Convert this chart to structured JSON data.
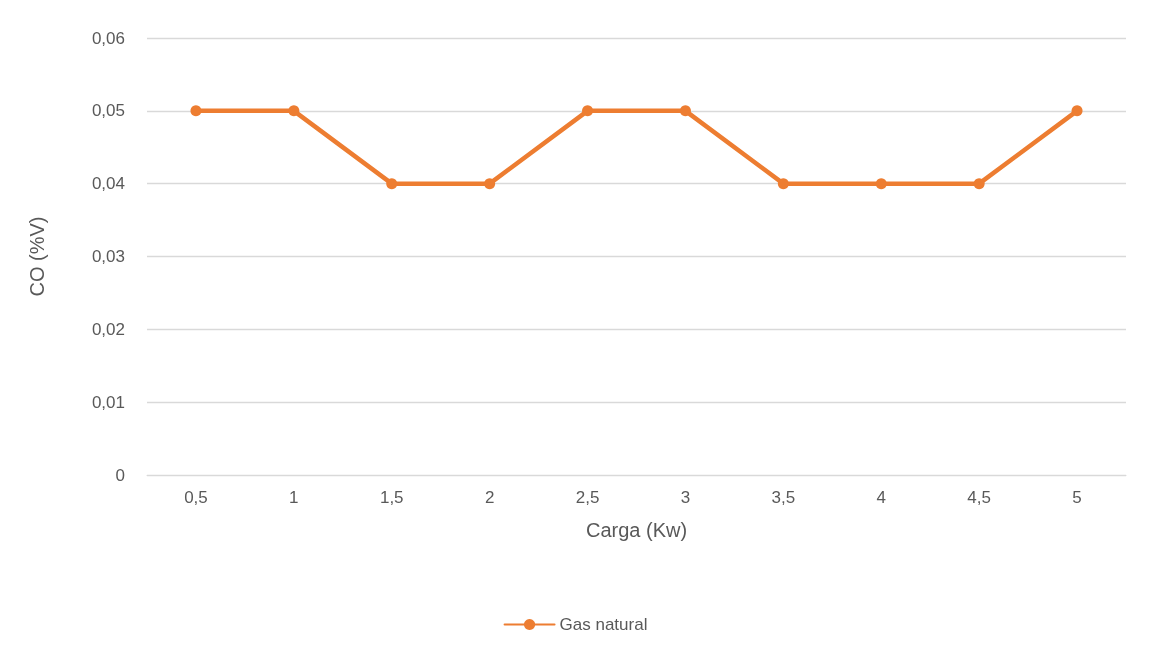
{
  "chart_data": {
    "type": "line",
    "xlabel": "Carga (Kw)",
    "ylabel": "CO (%V)",
    "categories": [
      "0,5",
      "1",
      "1,5",
      "2",
      "2,5",
      "3",
      "3,5",
      "4",
      "4,5",
      "5"
    ],
    "series": [
      {
        "name": "Gas natural",
        "color": "#ed7d31",
        "values": [
          0.05,
          0.05,
          0.04,
          0.04,
          0.05,
          0.05,
          0.04,
          0.04,
          0.04,
          0.05
        ]
      }
    ],
    "ylim": [
      0,
      0.06
    ],
    "yticks": [
      0,
      {
        "value": 0.01,
        "label": "0,01"
      },
      {
        "value": 0.02,
        "label": "0,02"
      },
      {
        "value": 0.03,
        "label": "0,03"
      },
      {
        "value": 0.04,
        "label": "0,04"
      },
      {
        "value": 0.05,
        "label": "0,05"
      },
      {
        "value": 0.06,
        "label": "0,06"
      }
    ],
    "grid": "y",
    "legend": "bottom",
    "marker": "circle",
    "line_style": "solid"
  }
}
